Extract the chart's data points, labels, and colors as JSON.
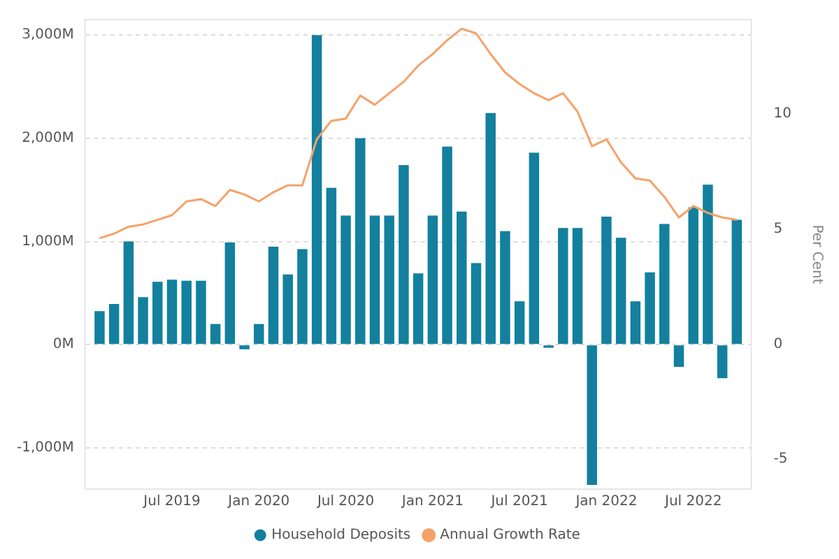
{
  "chart_data": {
    "type": "bar",
    "x": [
      "2019-02",
      "2019-03",
      "2019-04",
      "2019-05",
      "2019-06",
      "2019-07",
      "2019-08",
      "2019-09",
      "2019-10",
      "2019-11",
      "2019-12",
      "2020-01",
      "2020-02",
      "2020-03",
      "2020-04",
      "2020-05",
      "2020-06",
      "2020-07",
      "2020-08",
      "2020-09",
      "2020-10",
      "2020-11",
      "2020-12",
      "2021-01",
      "2021-02",
      "2021-03",
      "2021-04",
      "2021-05",
      "2021-06",
      "2021-07",
      "2021-08",
      "2021-09",
      "2021-10",
      "2021-11",
      "2021-12",
      "2022-01",
      "2022-02",
      "2022-03",
      "2022-04",
      "2022-05",
      "2022-06",
      "2022-07",
      "2022-08",
      "2022-09",
      "2022-10"
    ],
    "series": [
      {
        "name": "Household Deposits",
        "color": "#13809e",
        "values": [
          325,
          395,
          1000,
          460,
          610,
          630,
          620,
          620,
          200,
          990,
          -45,
          200,
          950,
          680,
          925,
          3000,
          1520,
          1250,
          2000,
          1250,
          1250,
          1740,
          690,
          1250,
          1920,
          1290,
          790,
          2245,
          1100,
          420,
          1860,
          -30,
          1130,
          1130,
          -1360,
          1240,
          1035,
          420,
          700,
          1170,
          -215,
          1330,
          1550,
          -325,
          1210
        ]
      },
      {
        "name": "Annual Growth Rate",
        "type": "line",
        "axis": "y2",
        "color": "#f5a26a",
        "values": [
          4.6,
          4.8,
          5.1,
          5.2,
          5.4,
          5.6,
          6.2,
          6.3,
          6.0,
          6.7,
          6.5,
          6.2,
          6.6,
          6.9,
          6.9,
          8.9,
          9.7,
          9.8,
          10.8,
          10.4,
          10.9,
          11.4,
          12.1,
          12.6,
          13.2,
          13.7,
          13.5,
          12.6,
          11.8,
          11.3,
          10.9,
          10.6,
          10.9,
          10.1,
          8.6,
          8.9,
          7.9,
          7.2,
          7.1,
          6.4,
          5.5,
          6.0,
          5.7,
          5.5,
          5.4
        ]
      }
    ],
    "xlim": [
      "2019-01",
      "2022-11"
    ],
    "xticks": [
      {
        "value": "2019-07",
        "label": "Jul 2019"
      },
      {
        "value": "2020-01",
        "label": "Jan 2020"
      },
      {
        "value": "2020-07",
        "label": "Jul 2020"
      },
      {
        "value": "2021-01",
        "label": "Jan 2021"
      },
      {
        "value": "2021-07",
        "label": "Jul 2021"
      },
      {
        "value": "2022-01",
        "label": "Jan 2022"
      },
      {
        "value": "2022-07",
        "label": "Jul 2022"
      }
    ],
    "ylim": [
      -1400,
      3150
    ],
    "yticks": [
      {
        "value": -1000,
        "label": "-1,000M"
      },
      {
        "value": 0,
        "label": "0M"
      },
      {
        "value": 1000,
        "label": "1,000M"
      },
      {
        "value": 2000,
        "label": "2,000M"
      },
      {
        "value": 3000,
        "label": "3,000M"
      }
    ],
    "y2lim": [
      -6.3,
      14.1
    ],
    "y2ticks": [
      -5,
      0,
      5,
      10
    ],
    "y2label": "Per Cent",
    "grid": "y",
    "legend": "bottom",
    "marker": "none",
    "line_style": "solid"
  }
}
